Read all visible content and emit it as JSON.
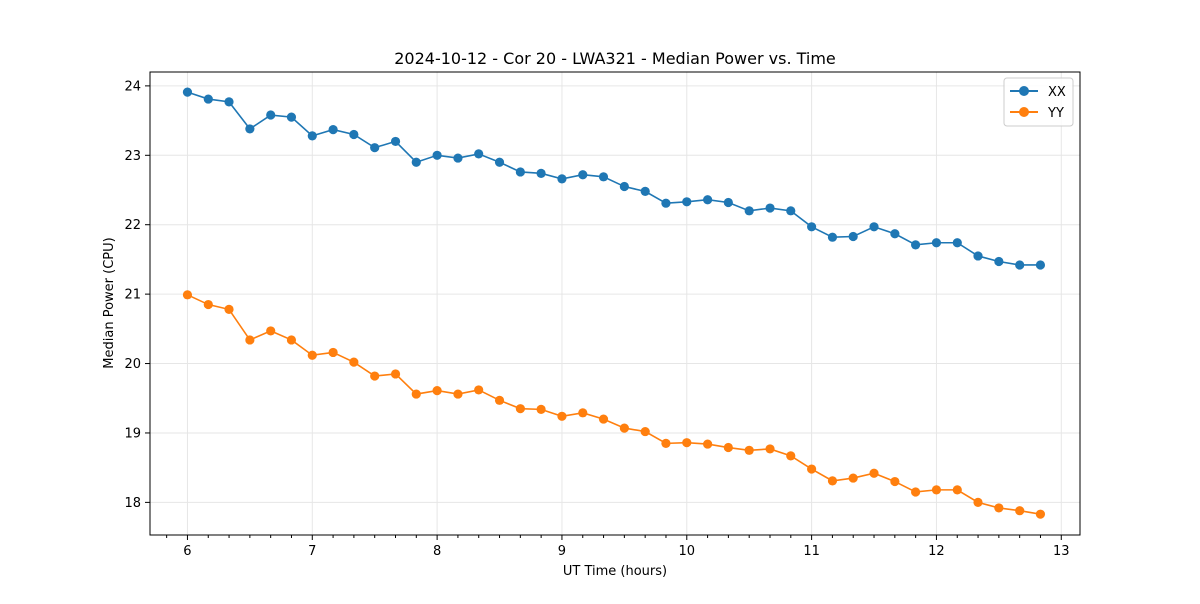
{
  "chart_data": {
    "type": "line",
    "title": "2024-10-12 - Cor 20 - LWA321 - Median Power vs. Time",
    "xlabel": "UT Time (hours)",
    "ylabel": "Median Power (CPU)",
    "xlim": [
      5.7,
      13.15
    ],
    "ylim": [
      17.53,
      24.2
    ],
    "xticks": [
      6,
      7,
      8,
      9,
      10,
      11,
      12,
      13
    ],
    "yticks": [
      18,
      19,
      20,
      21,
      22,
      23,
      24
    ],
    "grid": true,
    "legend_position": "top-right",
    "x": [
      6.0,
      6.167,
      6.333,
      6.5,
      6.667,
      6.833,
      7.0,
      7.167,
      7.333,
      7.5,
      7.667,
      7.833,
      8.0,
      8.167,
      8.333,
      8.5,
      8.667,
      8.833,
      9.0,
      9.167,
      9.333,
      9.5,
      9.667,
      9.833,
      10.0,
      10.167,
      10.333,
      10.5,
      10.667,
      10.833,
      11.0,
      11.167,
      11.333,
      11.5,
      11.667,
      11.833,
      12.0,
      12.167,
      12.333,
      12.5,
      12.667,
      12.833
    ],
    "series": [
      {
        "name": "XX",
        "color": "#1f77b4",
        "values": [
          23.91,
          23.81,
          23.77,
          23.38,
          23.58,
          23.55,
          23.28,
          23.37,
          23.3,
          23.11,
          23.2,
          22.9,
          23.0,
          22.96,
          23.02,
          22.9,
          22.76,
          22.74,
          22.66,
          22.72,
          22.69,
          22.55,
          22.48,
          22.31,
          22.33,
          22.36,
          22.32,
          22.2,
          22.24,
          22.2,
          21.97,
          21.82,
          21.83,
          21.97,
          21.87,
          21.71,
          21.74,
          21.74,
          21.55,
          21.47,
          21.42,
          21.42
        ]
      },
      {
        "name": "YY",
        "color": "#ff7f0e",
        "values": [
          20.99,
          20.85,
          20.78,
          20.34,
          20.47,
          20.34,
          20.12,
          20.16,
          20.02,
          19.82,
          19.85,
          19.56,
          19.61,
          19.56,
          19.62,
          19.47,
          19.35,
          19.34,
          19.24,
          19.29,
          19.2,
          19.07,
          19.02,
          18.85,
          18.86,
          18.84,
          18.79,
          18.75,
          18.77,
          18.67,
          18.48,
          18.31,
          18.35,
          18.42,
          18.3,
          18.15,
          18.18,
          18.18,
          18.0,
          17.92,
          17.88,
          17.83
        ]
      }
    ]
  }
}
